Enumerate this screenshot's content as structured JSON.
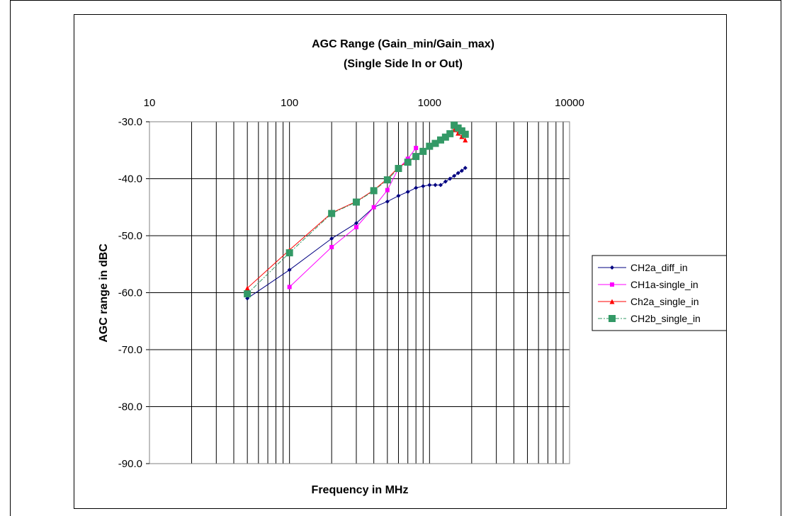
{
  "chart_data": {
    "type": "line",
    "title": "AGC Range (Gain_min/Gain_max)",
    "subtitle": "(Single Side In or Out)",
    "xlabel": "Frequency in MHz",
    "ylabel": "AGC range in dBC",
    "x_scale": "log",
    "x_axis_position": "top",
    "xlim": [
      10,
      10000
    ],
    "ylim": [
      -90,
      -30
    ],
    "x_ticks": [
      "10",
      "100",
      "1000",
      "10000"
    ],
    "y_ticks": [
      "-30.0",
      "-40.0",
      "-50.0",
      "-60.0",
      "-70.0",
      "-80.0",
      "-90.0"
    ],
    "grid": true,
    "legend_position": "right",
    "series": [
      {
        "name": "CH2a_diff_in",
        "color": "#000080",
        "marker": "diamond",
        "x": [
          50,
          100,
          200,
          300,
          400,
          500,
          600,
          700,
          800,
          900,
          1000,
          1100,
          1200,
          1300,
          1400,
          1500,
          1600,
          1700,
          1800
        ],
        "y": [
          -61.0,
          -56.0,
          -50.5,
          -47.8,
          -45.0,
          -44.0,
          -43.0,
          -42.3,
          -41.6,
          -41.3,
          -41.1,
          -41.1,
          -41.1,
          -40.5,
          -40.0,
          -39.5,
          -39.0,
          -38.6,
          -38.1
        ]
      },
      {
        "name": "CH1a-single_in",
        "color": "#FF00FF",
        "marker": "square",
        "x": [
          100,
          200,
          300,
          400,
          500,
          600,
          700,
          800
        ],
        "y": [
          -59.0,
          -52.0,
          -48.5,
          -45.0,
          -42.0,
          -38.2,
          -36.5,
          -34.6
        ]
      },
      {
        "name": "Ch2a_single_in",
        "color": "#FF0000",
        "marker": "triangle",
        "x": [
          50,
          100,
          200,
          300,
          400,
          500,
          600,
          700,
          800,
          900,
          1000,
          1100,
          1200,
          1300,
          1400,
          1500,
          1600,
          1700,
          1800
        ],
        "y": [
          -59.2,
          -52.5,
          -46.0,
          -44.0,
          -42.0,
          -40.0,
          -38.0,
          -37.0,
          -36.0,
          -35.0,
          -34.4,
          -33.8,
          -33.2,
          -32.5,
          -32.0,
          -31.4,
          -32.0,
          -32.6,
          -33.2
        ]
      },
      {
        "name": "CH2b_single_in",
        "color": "#339966",
        "marker": "square",
        "x": [
          50,
          100,
          200,
          300,
          400,
          500,
          600,
          700,
          800,
          900,
          1000,
          1100,
          1200,
          1300,
          1400,
          1500,
          1600,
          1700,
          1800
        ],
        "y": [
          -60.2,
          -53.0,
          -46.1,
          -44.1,
          -42.1,
          -40.2,
          -38.2,
          -37.1,
          -36.1,
          -35.2,
          -34.3,
          -33.8,
          -33.2,
          -32.7,
          -32.1,
          -30.6,
          -31.1,
          -31.6,
          -32.2
        ]
      }
    ]
  }
}
